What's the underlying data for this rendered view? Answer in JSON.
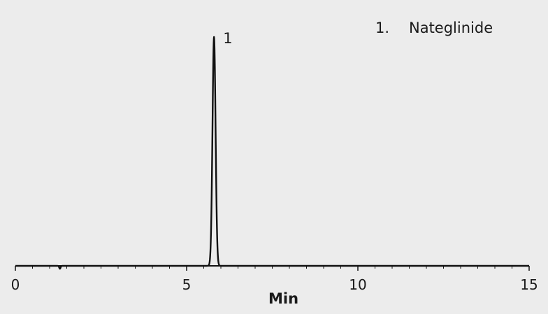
{
  "chart_data": {
    "type": "line",
    "title": "",
    "xlabel": "Min",
    "ylabel": "",
    "xlim": [
      0,
      15
    ],
    "ylim": [
      0,
      1
    ],
    "grid": false,
    "legend_position": "top-right",
    "x_ticks": [
      {
        "value": 0,
        "label": "0"
      },
      {
        "value": 5,
        "label": "5"
      },
      {
        "value": 10,
        "label": "10"
      },
      {
        "value": 15,
        "label": "15"
      }
    ],
    "series": [
      {
        "peaks": [
          {
            "label": "1",
            "retention_time": 5.8,
            "height": 0.95,
            "width_sigma": 0.045
          }
        ],
        "baseline_dip": {
          "x": 1.3,
          "depth": 0.012
        }
      }
    ],
    "legend": [
      {
        "number": "1.",
        "name": "Nateglinide"
      }
    ],
    "line_color": "#111111",
    "background_color": "#ececec"
  }
}
